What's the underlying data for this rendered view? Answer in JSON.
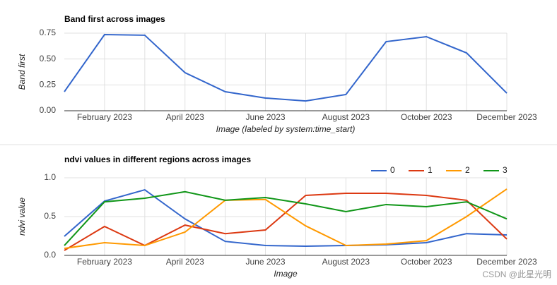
{
  "chart_data": [
    {
      "type": "line",
      "title": "Band first across images",
      "y_label": "Band first",
      "x_label": "Image (labeled by system:time_start)",
      "categories": [
        null,
        "February 2023",
        null,
        "April 2023",
        null,
        "June 2023",
        null,
        "August 2023",
        null,
        "October 2023",
        null,
        "December 2023"
      ],
      "series": [
        {
          "name": "Band first",
          "color": "#3366cc",
          "values": [
            0.184,
            0.736,
            0.73,
            0.368,
            0.184,
            0.123,
            0.095,
            0.157,
            0.668,
            0.716,
            0.559,
            0.17
          ]
        }
      ],
      "ylim": [
        0,
        0.75
      ],
      "yticks": [
        {
          "value": 0,
          "label": "0.00"
        },
        {
          "value": 0.25,
          "label": "0.25"
        },
        {
          "value": 0.5,
          "label": "0.50"
        },
        {
          "value": 0.75,
          "label": "0.75"
        }
      ],
      "grid": true,
      "legend": false
    },
    {
      "type": "line",
      "title": "ndvi values in different regions across images",
      "y_label": "ndvi value",
      "x_label": "Image",
      "categories": [
        null,
        "February 2023",
        null,
        "April 2023",
        null,
        "June 2023",
        null,
        "August 2023",
        null,
        "October 2023",
        null,
        "December 2023"
      ],
      "series": [
        {
          "name": "0",
          "color": "#3366cc",
          "values": [
            0.245,
            0.7,
            0.845,
            0.47,
            0.18,
            0.127,
            0.118,
            0.127,
            0.136,
            0.164,
            0.28,
            0.264
          ]
        },
        {
          "name": "1",
          "color": "#dc3912",
          "values": [
            0.064,
            0.373,
            0.127,
            0.39,
            0.28,
            0.327,
            0.773,
            0.8,
            0.8,
            0.773,
            0.71,
            0.21
          ]
        },
        {
          "name": "2",
          "color": "#ff9900",
          "values": [
            0.09,
            0.164,
            0.127,
            0.3,
            0.71,
            0.72,
            0.38,
            0.127,
            0.145,
            0.19,
            0.5,
            0.855
          ]
        },
        {
          "name": "3",
          "color": "#109618",
          "values": [
            0.127,
            0.69,
            0.736,
            0.82,
            0.71,
            0.745,
            0.664,
            0.564,
            0.655,
            0.627,
            0.69,
            0.47
          ]
        }
      ],
      "ylim": [
        0,
        1
      ],
      "yticks": [
        {
          "value": 0,
          "label": "0.0"
        },
        {
          "value": 0.5,
          "label": "0.5"
        },
        {
          "value": 1,
          "label": "1.0"
        }
      ],
      "grid": true,
      "legend": "top-right"
    }
  ],
  "watermark": "CSDN @此星光明"
}
